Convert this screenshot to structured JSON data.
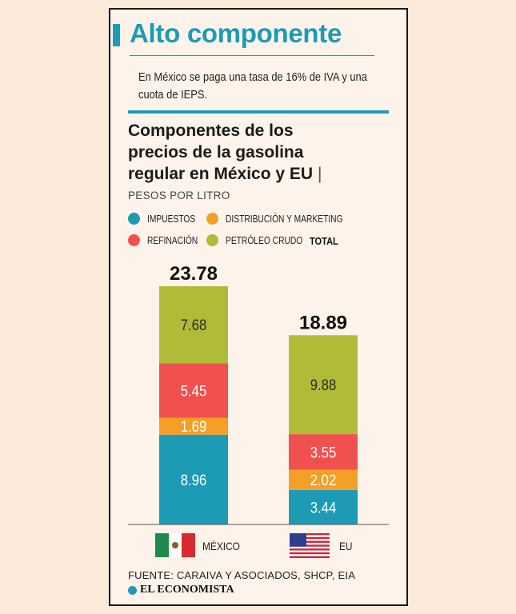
{
  "header": {
    "title": "Alto componente",
    "subtitle": "En México se paga una tasa de 16% de IVA y una cuota de IEPS."
  },
  "chart_data": {
    "type": "bar",
    "stacked": true,
    "title": "Componentes de los precios de la gasolina regular en México y EU",
    "title_lines": [
      "Componentes de los",
      "precios de la gasolina",
      "regular en México y EU"
    ],
    "title_separator": "|",
    "ylabel": "PESOS POR LITRO",
    "categories": [
      "MÉXICO",
      "EU"
    ],
    "series": [
      {
        "name": "IMPUESTOS",
        "color": "#1d9bb5",
        "values": [
          8.96,
          3.44
        ]
      },
      {
        "name": "DISTRIBUCIÓN Y MARKETING",
        "color": "#f4a028",
        "values": [
          1.69,
          2.02
        ]
      },
      {
        "name": "REFINACIÓN",
        "color": "#f0514f",
        "values": [
          5.45,
          3.55
        ]
      },
      {
        "name": "PETRÓLEO CRUDO",
        "color": "#b2bb37",
        "values": [
          7.68,
          9.88
        ]
      }
    ],
    "value_labels": [
      [
        "8.96",
        "1.69",
        "5.45",
        "7.68"
      ],
      [
        "3.44",
        "2.02",
        "3.55",
        "9.88"
      ]
    ],
    "totals": [
      23.78,
      18.89
    ],
    "total_labels": [
      "23.78",
      "18.89"
    ],
    "total_legend_label": "TOTAL",
    "ylim": [
      0,
      23.78
    ],
    "legend_position": "top"
  },
  "legend_labels": {
    "impuestos": "IMPUESTOS",
    "distribucion": "DISTRIBUCIÓN Y MARKETING",
    "refinacion": "REFINACIÓN",
    "crudo": "PETRÓLEO CRUDO"
  },
  "footer": {
    "source": "FUENTE: CARAIVA Y ASOCIADOS, SHCP, EIA",
    "brand": "EL ECONOMISTA"
  },
  "colors": {
    "accent": "#1d9bb5",
    "impuestos": "#1d9bb5",
    "distribucion": "#f4a028",
    "refinacion": "#f0514f",
    "crudo": "#b2bb37"
  }
}
